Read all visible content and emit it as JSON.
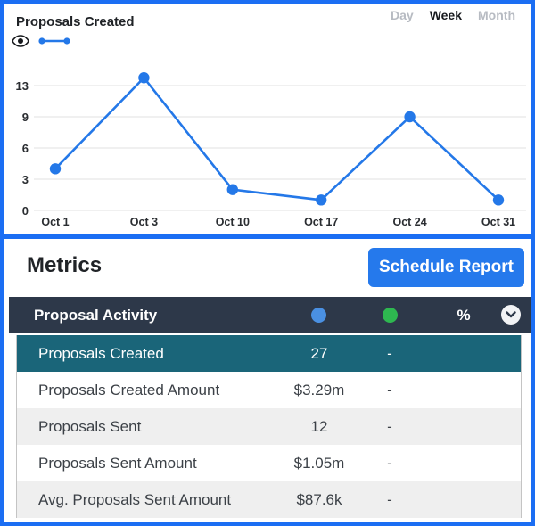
{
  "colors": {
    "frame_border": "#1b6ef3",
    "chart_line": "#2478e8",
    "button_blue": "#2579ec",
    "header_navy": "#2d3849",
    "highlight_teal": "#1a6579",
    "series1_dot": "#4a90e2",
    "series2_dot": "#2eb850",
    "stripe_gray": "#efefef"
  },
  "chart_panel": {
    "title": "Proposals Created",
    "tabs": [
      {
        "label": "Day",
        "active": false
      },
      {
        "label": "Week",
        "active": true
      },
      {
        "label": "Month",
        "active": false
      }
    ],
    "legend": {
      "eye_icon": "eye-icon",
      "marker": "line-with-end-dots"
    }
  },
  "chart_data": {
    "type": "line",
    "title": "Proposals Created",
    "series_name": "Proposals Created",
    "categories": [
      "Oct 1",
      "Oct 3",
      "Oct 10",
      "Oct 17",
      "Oct 24",
      "Oct 31"
    ],
    "values": [
      4,
      14,
      2,
      1,
      9,
      1
    ],
    "yticks": [
      0,
      3,
      6,
      9,
      13
    ],
    "ylim": [
      0,
      14.5
    ],
    "xlabel": "",
    "ylabel": "",
    "grid": true,
    "legend_position": "top-left",
    "line_color": "#2478e8"
  },
  "metrics_panel": {
    "title": "Metrics",
    "schedule_button_label": "Schedule Report",
    "table": {
      "header": {
        "title": "Proposal Activity",
        "percent_label": "%",
        "chevron_icon": "chevron-down-icon"
      },
      "rows": [
        {
          "label": "Proposals Created",
          "value": "27",
          "delta": "-",
          "highlight": true
        },
        {
          "label": "Proposals Created Amount",
          "value": "$3.29m",
          "delta": "-",
          "highlight": false
        },
        {
          "label": "Proposals Sent",
          "value": "12",
          "delta": "-",
          "highlight": false
        },
        {
          "label": "Proposals Sent Amount",
          "value": "$1.05m",
          "delta": "-",
          "highlight": false
        },
        {
          "label": "Avg. Proposals Sent Amount",
          "value": "$87.6k",
          "delta": "-",
          "highlight": false
        }
      ]
    }
  }
}
